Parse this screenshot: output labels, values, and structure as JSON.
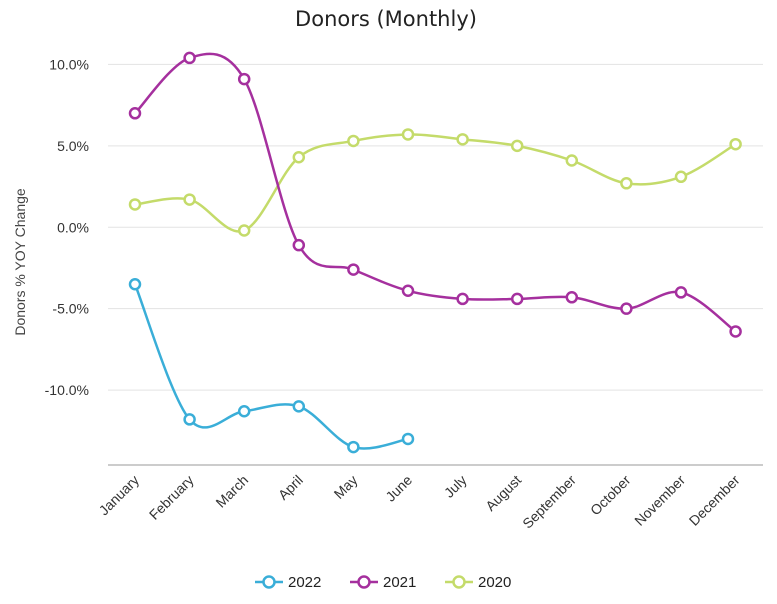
{
  "chart_data": {
    "type": "line",
    "title": "Donors (Monthly)",
    "xlabel": "",
    "ylabel": "Donors % YOY Change",
    "categories": [
      "January",
      "February",
      "March",
      "April",
      "May",
      "June",
      "July",
      "August",
      "September",
      "October",
      "November",
      "December"
    ],
    "y_ticks": [
      "10.0%",
      "5.0%",
      "0.0%",
      "-5.0%",
      "-10.0%"
    ],
    "y_tick_values": [
      10,
      5,
      0,
      -5,
      -10
    ],
    "ylim": [
      -14.6,
      11.5
    ],
    "grid": true,
    "legend_position": "bottom",
    "series": [
      {
        "name": "2022",
        "color": "#3aaed8",
        "values": [
          -3.5,
          -11.8,
          -11.3,
          -11.0,
          -13.5,
          -13.0,
          null,
          null,
          null,
          null,
          null,
          null
        ]
      },
      {
        "name": "2021",
        "color": "#a5309e",
        "values": [
          7.0,
          10.4,
          9.1,
          -1.1,
          -2.6,
          -3.9,
          -4.4,
          -4.4,
          -4.3,
          -5.0,
          -4.0,
          -6.4
        ]
      },
      {
        "name": "2020",
        "color": "#c4db6a",
        "values": [
          1.4,
          1.7,
          -0.2,
          4.3,
          5.3,
          5.7,
          5.4,
          5.0,
          4.1,
          2.7,
          3.1,
          5.1
        ]
      }
    ]
  }
}
